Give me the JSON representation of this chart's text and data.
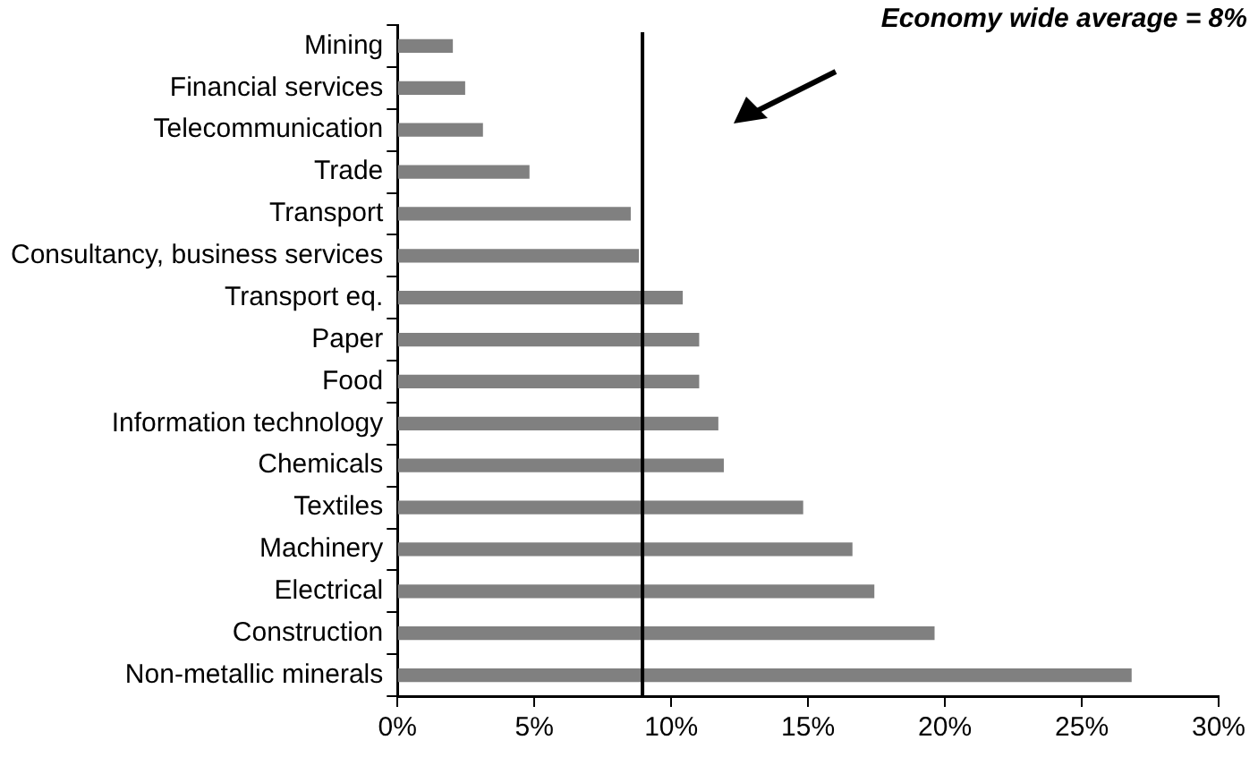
{
  "chart_data": {
    "type": "bar",
    "orientation": "horizontal",
    "categories": [
      "Mining",
      "Financial services",
      "Telecommunication",
      "Trade",
      "Transport",
      "Consultancy, business services",
      "Transport eq.",
      "Paper",
      "Food",
      "Information technology",
      "Chemicals",
      "Textiles",
      "Machinery",
      "Electrical",
      "Construction",
      "Non-metallic minerals"
    ],
    "values": [
      2.0,
      2.45,
      3.1,
      4.8,
      8.5,
      8.8,
      10.4,
      11.0,
      11.0,
      11.7,
      11.9,
      14.8,
      16.6,
      17.4,
      19.6,
      26.8
    ],
    "color": "#808080",
    "xlim": [
      0,
      30
    ],
    "xticks": [
      {
        "value": 0,
        "label": "0%"
      },
      {
        "value": 5,
        "label": "5%"
      },
      {
        "value": 10,
        "label": "10%"
      },
      {
        "value": 15,
        "label": "15%"
      },
      {
        "value": 20,
        "label": "20%"
      },
      {
        "value": 25,
        "label": "25%"
      },
      {
        "value": 30,
        "label": "30%"
      }
    ],
    "ref_lines": [
      {
        "axis": "x",
        "value": 8.95,
        "color": "#000000"
      }
    ],
    "annotations": [
      "Economy wide average = 8%"
    ],
    "grid": false,
    "legend": false
  }
}
